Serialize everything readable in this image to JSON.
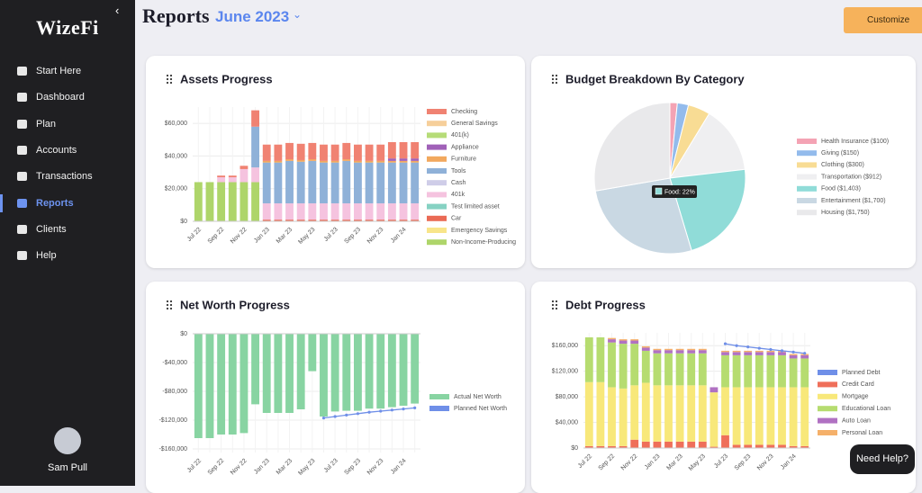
{
  "sidebar": {
    "logo": "WizeFi",
    "nav": [
      "Start Here",
      "Dashboard",
      "Plan",
      "Accounts",
      "Transactions",
      "Reports",
      "Clients",
      "Help"
    ],
    "user": "Sam Pull"
  },
  "header": {
    "title": "Reports",
    "period": "June 2023",
    "button": "Customize"
  },
  "help_button": "Need Help?",
  "chart_data": [
    {
      "type": "bar",
      "title": "Assets Progress",
      "categories": [
        "Jul 22",
        null,
        "Sep 22",
        null,
        "Nov 22",
        null,
        "Jan 23",
        null,
        "Mar 23",
        null,
        "May 23",
        null,
        "Jul 23",
        null,
        "Sep 23",
        null,
        "Nov 23",
        null,
        "Jan 24",
        null
      ],
      "ylim": [
        0,
        70000
      ],
      "yticks": [
        {
          "value": 0,
          "label": "$0"
        },
        {
          "value": 20000,
          "label": "$20,000"
        },
        {
          "value": 40000,
          "label": "$40,000"
        },
        {
          "value": 60000,
          "label": "$60,000"
        }
      ],
      "grid": true,
      "series": [
        {
          "name": "Checking",
          "color": "#f08272",
          "values": [
            0,
            0,
            1000,
            1000,
            2000,
            10000,
            10000,
            10000,
            10000,
            10000,
            10000,
            10000,
            10000,
            10000,
            10000,
            10000,
            10000,
            10000,
            10000,
            10000
          ]
        },
        {
          "name": "General Savings",
          "color": "#f6cf9a",
          "values": [
            0,
            0,
            0,
            0,
            0,
            0,
            0,
            0,
            0,
            0,
            0,
            0,
            0,
            0,
            0,
            0,
            0,
            0,
            0,
            0
          ]
        },
        {
          "name": "401(k)",
          "color": "#b6dc78",
          "values": [
            0,
            0,
            0,
            0,
            0,
            0,
            0,
            0,
            0,
            0,
            0,
            0,
            0,
            0,
            0,
            0,
            0,
            0,
            0,
            0
          ]
        },
        {
          "name": "Appliance",
          "color": "#a061b8",
          "values": [
            0,
            0,
            0,
            0,
            0,
            0,
            0,
            0,
            0,
            0,
            0,
            0,
            0,
            0,
            0,
            0,
            0,
            1500,
            1500,
            1500
          ]
        },
        {
          "name": "Furniture",
          "color": "#f2a85e",
          "values": [
            0,
            0,
            0,
            0,
            0,
            0,
            1000,
            1000,
            1000,
            1000,
            1000,
            1000,
            1000,
            1000,
            1000,
            1000,
            1000,
            1000,
            1000,
            1000
          ]
        },
        {
          "name": "Tools",
          "color": "#8fb1d8",
          "values": [
            0,
            0,
            0,
            0,
            0,
            25000,
            25000,
            25000,
            26000,
            25500,
            26000,
            25000,
            25000,
            26000,
            25000,
            25000,
            25000,
            25000,
            25000,
            25000
          ]
        },
        {
          "name": "Cash",
          "color": "#cfcde8",
          "values": [
            0,
            0,
            0,
            0,
            0,
            0,
            0,
            0,
            0,
            0,
            0,
            0,
            0,
            0,
            0,
            0,
            0,
            0,
            0,
            0
          ]
        },
        {
          "name": "401k",
          "color": "#f5c3df",
          "values": [
            0,
            0,
            3000,
            3000,
            8000,
            9000,
            10000,
            10000,
            10000,
            10000,
            10000,
            10000,
            10000,
            10000,
            10000,
            10000,
            10000,
            10000,
            10000,
            10000
          ]
        },
        {
          "name": "Test limited asset",
          "color": "#86d2c3",
          "values": [
            0,
            0,
            0,
            0,
            0,
            0,
            0,
            0,
            0,
            0,
            0,
            0,
            0,
            0,
            0,
            0,
            0,
            0,
            0,
            0
          ]
        },
        {
          "name": "Car",
          "color": "#ea6a55",
          "values": [
            0,
            0,
            0,
            0,
            0,
            0,
            1000,
            1000,
            1000,
            1000,
            1000,
            1000,
            1000,
            1000,
            1000,
            1000,
            1000,
            1000,
            1000,
            1000
          ]
        },
        {
          "name": "Emergency Savings",
          "color": "#f8e58a",
          "values": [
            0,
            0,
            0,
            0,
            0,
            0,
            0,
            0,
            0,
            0,
            0,
            0,
            0,
            0,
            0,
            0,
            0,
            0,
            0,
            0
          ]
        },
        {
          "name": "Non-Income-Producing",
          "color": "#aed56a",
          "values": [
            24000,
            24000,
            24000,
            24000,
            24000,
            24000,
            0,
            0,
            0,
            0,
            0,
            0,
            0,
            0,
            0,
            0,
            0,
            0,
            0,
            0
          ]
        }
      ]
    },
    {
      "type": "pie",
      "title": "Budget Breakdown By Category",
      "categories": [
        "Health Insurance ($100)",
        "Giving ($150)",
        "Clothing ($300)",
        "Transportation ($912)",
        "Food ($1,403)",
        "Entertainment ($1,700)",
        "Housing ($1,750)"
      ],
      "values": [
        100,
        150,
        300,
        912,
        1403,
        1700,
        1750
      ],
      "colors": [
        "#f4a3b4",
        "#93bbec",
        "#f8dc94",
        "#efeff1",
        "#90dcd8",
        "#c9d8e3",
        "#e9e9eb"
      ],
      "annotation": "Food: 22%"
    },
    {
      "type": "bar",
      "title": "Net Worth Progress",
      "categories": [
        "Jul 22",
        null,
        "Sep 22",
        null,
        "Nov 22",
        null,
        "Jan 23",
        null,
        "Mar 23",
        null,
        "May 23",
        null,
        "Jul 23",
        null,
        "Sep 23",
        null,
        "Nov 23",
        null,
        "Jan 24",
        null
      ],
      "ylim": [
        -165000,
        0
      ],
      "yticks": [
        {
          "value": 0,
          "label": "$0"
        },
        {
          "value": -40000,
          "label": "-$40,000"
        },
        {
          "value": -80000,
          "label": "-$80,000"
        },
        {
          "value": -120000,
          "label": "-$120,000"
        },
        {
          "value": -160000,
          "label": "-$160,000"
        }
      ],
      "grid": true,
      "series": [
        {
          "name": "Actual Net Worth",
          "color": "#88d4a2",
          "values": [
            -145000,
            -145000,
            -140000,
            -140000,
            -138000,
            -98000,
            -110000,
            -110000,
            -110000,
            -105000,
            -52000,
            -115000,
            -108000,
            -107000,
            -107000,
            -104000,
            -104000,
            -102000,
            -100000,
            -97000
          ]
        },
        {
          "name": "Planned Net Worth",
          "color": "#6f8fe8",
          "type": "line",
          "values": [
            null,
            null,
            null,
            null,
            null,
            null,
            null,
            null,
            null,
            null,
            null,
            -117000,
            -115000,
            -113000,
            -111000,
            -109000,
            -107500,
            -106000,
            -104500,
            -103000
          ]
        }
      ]
    },
    {
      "type": "bar",
      "title": "Debt Progress",
      "categories": [
        "Jul 22",
        null,
        "Sep 22",
        null,
        "Nov 22",
        null,
        "Jan 23",
        null,
        "Mar 23",
        null,
        "May 23",
        null,
        "Jul 23",
        null,
        "Sep 23",
        null,
        "Nov 23",
        null,
        "Jan 24",
        null
      ],
      "ylim": [
        0,
        180000
      ],
      "yticks": [
        {
          "value": 0,
          "label": "$0"
        },
        {
          "value": 40000,
          "label": "$40,000"
        },
        {
          "value": 80000,
          "label": "$80,000"
        },
        {
          "value": 120000,
          "label": "$120,000"
        },
        {
          "value": 160000,
          "label": "$160,000"
        }
      ],
      "grid": true,
      "series": [
        {
          "name": "Planned Debt",
          "color": "#6f8fe8",
          "type": "line",
          "values": [
            null,
            null,
            null,
            null,
            null,
            null,
            null,
            null,
            null,
            null,
            null,
            null,
            163000,
            160000,
            158000,
            156000,
            154000,
            152000,
            150000,
            148000
          ]
        },
        {
          "name": "Credit Card",
          "color": "#ef6f5a",
          "values": [
            3000,
            3000,
            3000,
            3000,
            13000,
            10000,
            10000,
            10000,
            10000,
            10000,
            10000,
            2000,
            20000,
            5000,
            5000,
            5000,
            5000,
            5000,
            3000,
            3000
          ]
        },
        {
          "name": "Mortgage",
          "color": "#f8e87a",
          "values": [
            100000,
            100000,
            92000,
            90000,
            85000,
            92000,
            88000,
            88000,
            88000,
            88000,
            88000,
            85000,
            75000,
            90000,
            90000,
            90000,
            90000,
            90000,
            92000,
            92000
          ]
        },
        {
          "name": "Educational Loan",
          "color": "#b6dc70",
          "values": [
            70000,
            70000,
            70000,
            70000,
            65000,
            50000,
            50000,
            50000,
            50000,
            50000,
            50000,
            0,
            50000,
            50000,
            50000,
            50000,
            50000,
            50000,
            45000,
            45000
          ]
        },
        {
          "name": "Auto Loan",
          "color": "#b071c2",
          "values": [
            0,
            0,
            5000,
            5000,
            5000,
            5000,
            5000,
            5000,
            5000,
            5000,
            5000,
            8000,
            5000,
            5000,
            5000,
            5000,
            5000,
            5000,
            5000,
            5000
          ]
        },
        {
          "name": "Personal Loan",
          "color": "#f5b06a",
          "values": [
            0,
            0,
            2000,
            2000,
            2000,
            2000,
            2000,
            2000,
            2000,
            2000,
            2000,
            0,
            2000,
            2000,
            2000,
            2000,
            2000,
            2000,
            2000,
            2000
          ]
        }
      ]
    }
  ]
}
